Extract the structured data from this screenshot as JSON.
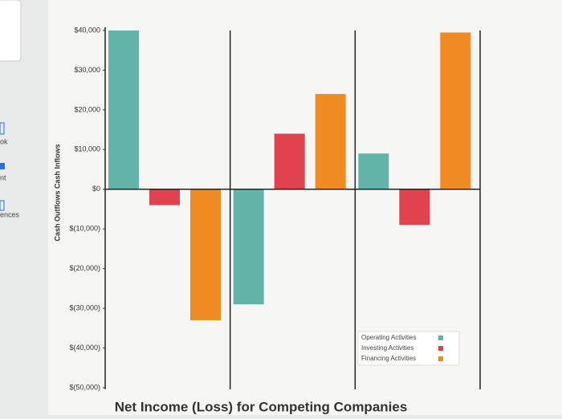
{
  "sidebar": [
    "ok",
    "nt",
    "ences"
  ],
  "chart_data": {
    "type": "bar",
    "title": "Net Income (Loss) for Competing Companies",
    "y_label": "Cash Outflows Cash Inflows",
    "categories": [
      null,
      null,
      null
    ],
    "series": [
      {
        "name": "Operating Activities",
        "color": "#62b4a8",
        "values": [
          40000,
          -29000,
          9000
        ]
      },
      {
        "name": "Investing Activities",
        "color": "#e0424e",
        "values": [
          -4000,
          14000,
          -9000
        ]
      },
      {
        "name": "Financing Activities",
        "color": "#f08a23",
        "values": [
          -33000,
          24000,
          39500
        ]
      }
    ],
    "ylim": [
      -50000,
      40000
    ],
    "yticks": [
      {
        "value": -50000,
        "label": "$(50,000)"
      },
      {
        "value": -40000,
        "label": "$(40,000)"
      },
      {
        "value": -30000,
        "label": "$(30,000)"
      },
      {
        "value": -20000,
        "label": "$(20,000)"
      },
      {
        "value": -10000,
        "label": "$(10,000)"
      },
      {
        "value": 0,
        "label": "$0"
      },
      {
        "value": 10000,
        "label": "$10,000"
      },
      {
        "value": 20000,
        "label": "$20,000"
      },
      {
        "value": 30000,
        "label": "$30,000"
      },
      {
        "value": 40000,
        "label": "$40,000"
      }
    ],
    "legend": "lower right"
  }
}
